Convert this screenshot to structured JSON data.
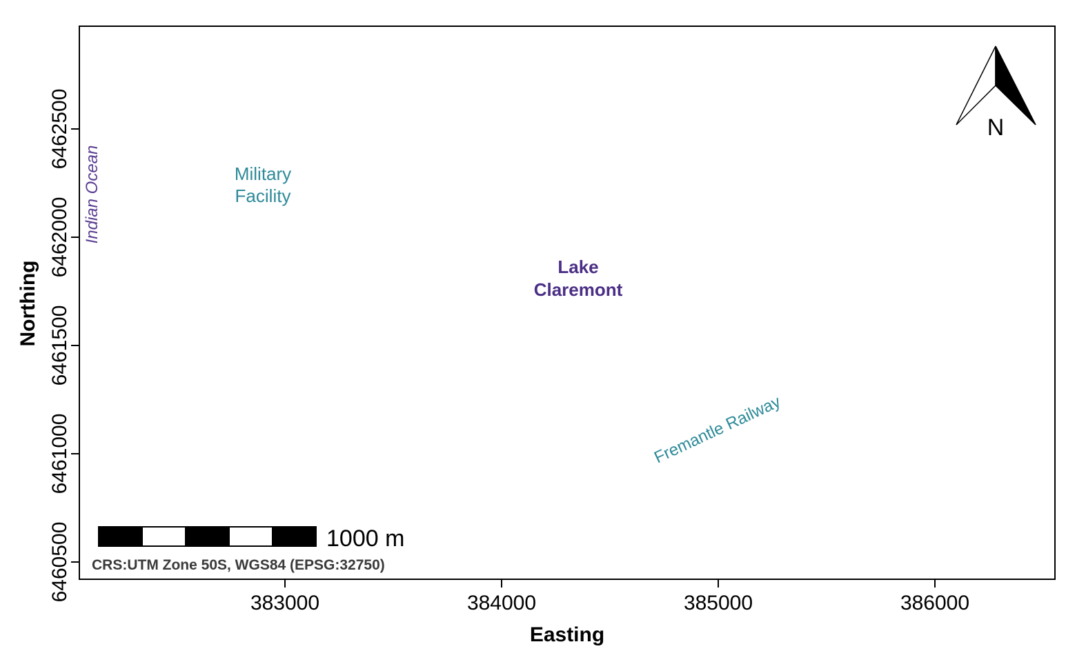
{
  "map": {
    "axes": {
      "x_title": "Easting",
      "y_title": "Northing",
      "x_ticks": [
        "383000",
        "384000",
        "385000",
        "386000"
      ],
      "y_ticks": [
        "6460500",
        "6461000",
        "6461500",
        "6462000",
        "6462500"
      ]
    },
    "labels": {
      "indian_ocean": "Indian Ocean",
      "military_line1": "Military",
      "military_line2": "Facility",
      "lake_line1": "Lake",
      "lake_line2": "Claremont",
      "railway": "Fremantle Railway"
    },
    "north_arrow": {
      "label": "N"
    },
    "scale_bar": {
      "label": "1000 m"
    },
    "crs_note": "CRS:UTM Zone 50S, WGS84 (EPSG:32750)",
    "colors": {
      "water_label": "#5a3d91",
      "feature_label": "#2e8a99",
      "lake_label": "#4b2f86",
      "frame": "#000000"
    }
  }
}
